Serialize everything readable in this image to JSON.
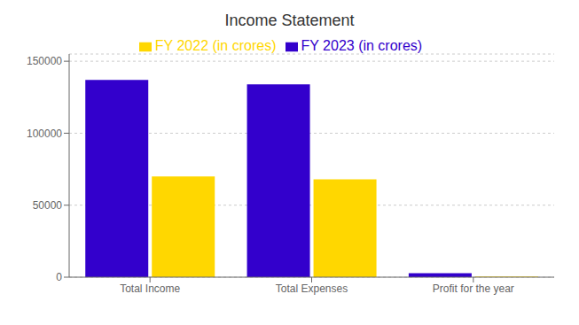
{
  "chart_data": {
    "type": "bar",
    "title": "Income Statement",
    "categories": [
      "Total Income",
      "Total Expenses",
      "Profit for the year"
    ],
    "series": [
      {
        "name": "FY 2023 (in crores)",
        "color": "#3300cc",
        "values": [
          137000,
          134000,
          2800
        ]
      },
      {
        "name": "FY 2022 (in crores)",
        "color": "#FFD700",
        "values": [
          70000,
          68000,
          500
        ]
      }
    ],
    "ylim": [
      0,
      155000
    ],
    "yticks": [
      0,
      50000,
      100000,
      150000
    ],
    "grid": true,
    "legend": "top"
  }
}
